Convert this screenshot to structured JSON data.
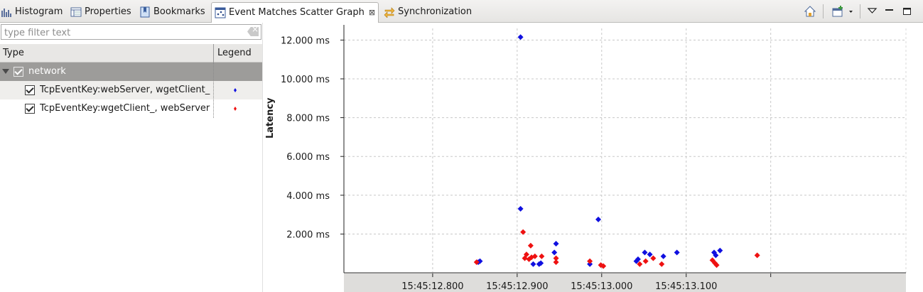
{
  "tabs": [
    {
      "label": "Histogram",
      "icon": "histogram-icon"
    },
    {
      "label": "Properties",
      "icon": "properties-icon"
    },
    {
      "label": "Bookmarks",
      "icon": "bookmarks-icon"
    },
    {
      "label": "Event Matches Scatter Graph",
      "icon": "scatter-graph-icon",
      "active": true,
      "close": "⊠"
    },
    {
      "label": "Synchronization",
      "icon": "synchronization-icon"
    }
  ],
  "view_toolbar": [
    "home-icon",
    "new-view-icon",
    "dropdown-icon",
    "view-menu-icon",
    "minimize-icon",
    "maximize-icon"
  ],
  "filter": {
    "placeholder": "type filter text",
    "value": ""
  },
  "table": {
    "headers": {
      "type": "Type",
      "legend": "Legend"
    },
    "group": {
      "label": "network",
      "checked": true
    },
    "items": [
      {
        "label": "TcpEventKey:webServer, wgetClient_",
        "checked": true,
        "color": "#1010e0"
      },
      {
        "label": "TcpEventKey:wgetClient_, webServer",
        "checked": true,
        "color": "#ee1111"
      }
    ]
  },
  "chart_data": {
    "type": "scatter",
    "ylabel": "Latency",
    "xlabel": "",
    "y_ticks": [
      "2.000 ms",
      "4.000 ms",
      "6.000 ms",
      "8.000 ms",
      "10.000 ms",
      "12.000 ms"
    ],
    "y_tick_values": [
      2000,
      4000,
      6000,
      8000,
      10000,
      12000
    ],
    "x_ticks": [
      "15:45:12.800",
      "15:45:12.900",
      "15:45:13.000",
      "15:45:13.100"
    ],
    "x_tick_values": [
      12.8,
      12.9,
      13.0,
      13.1
    ],
    "xlim": [
      12.695,
      13.36
    ],
    "ylim": [
      0,
      12600
    ],
    "grid": true,
    "series": [
      {
        "name": "TcpEventKey:webServer, wgetClient_",
        "color": "#1010e0",
        "points": [
          [
            12.854,
            550
          ],
          [
            12.856,
            600
          ],
          [
            12.904,
            12150
          ],
          [
            12.904,
            3300
          ],
          [
            12.919,
            450
          ],
          [
            12.926,
            450
          ],
          [
            12.928,
            500
          ],
          [
            12.944,
            1050
          ],
          [
            12.946,
            1500
          ],
          [
            12.986,
            450
          ],
          [
            12.996,
            2750
          ],
          [
            13.041,
            600
          ],
          [
            13.043,
            700
          ],
          [
            13.051,
            1050
          ],
          [
            13.057,
            950
          ],
          [
            13.073,
            850
          ],
          [
            13.089,
            1050
          ],
          [
            13.133,
            1050
          ],
          [
            13.135,
            900
          ],
          [
            13.14,
            1150
          ]
        ]
      },
      {
        "name": "TcpEventKey:wgetClient_, webServer",
        "color": "#ee1111",
        "points": [
          [
            12.852,
            550
          ],
          [
            12.907,
            2100
          ],
          [
            12.909,
            750
          ],
          [
            12.911,
            950
          ],
          [
            12.914,
            700
          ],
          [
            12.916,
            1400
          ],
          [
            12.917,
            800
          ],
          [
            12.921,
            850
          ],
          [
            12.929,
            850
          ],
          [
            12.946,
            750
          ],
          [
            12.946,
            550
          ],
          [
            12.986,
            600
          ],
          [
            12.999,
            400
          ],
          [
            13.002,
            350
          ],
          [
            13.045,
            450
          ],
          [
            13.052,
            600
          ],
          [
            13.061,
            750
          ],
          [
            13.071,
            450
          ],
          [
            13.131,
            650
          ],
          [
            13.134,
            500
          ],
          [
            13.136,
            400
          ],
          [
            13.184,
            900
          ]
        ]
      }
    ]
  }
}
